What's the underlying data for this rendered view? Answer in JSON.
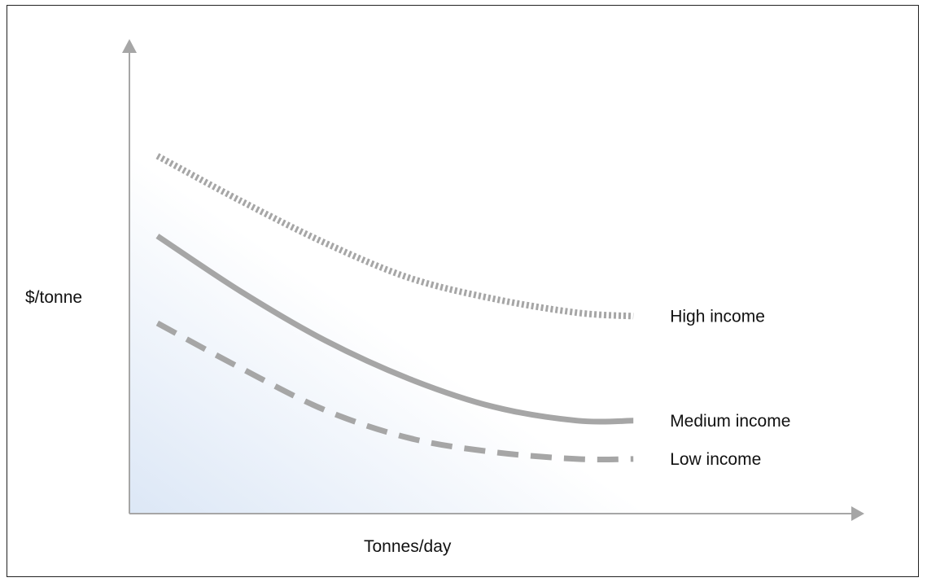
{
  "chart_data": {
    "type": "line",
    "title": "",
    "xlabel": "Tonnes/day",
    "ylabel": "$/tonne",
    "xlim": [
      0,
      100
    ],
    "ylim": [
      0,
      100
    ],
    "grid": false,
    "axis_ticks": false,
    "legend": "labels at right end of each line",
    "series": [
      {
        "name": "High income",
        "style": "dotted",
        "color": "#a6a6a6",
        "x": [
          5,
          20,
          35,
          50,
          65,
          80,
          90
        ],
        "y": [
          98,
          85,
          73,
          63,
          57,
          53,
          52
        ]
      },
      {
        "name": "Medium income",
        "style": "solid",
        "color": "#a6a6a6",
        "x": [
          5,
          20,
          35,
          50,
          65,
          80,
          90
        ],
        "y": [
          75,
          59,
          45,
          34,
          26,
          22,
          22
        ]
      },
      {
        "name": "Low income",
        "style": "dashed",
        "color": "#a6a6a6",
        "x": [
          5,
          20,
          35,
          50,
          65,
          80,
          90
        ],
        "y": [
          50,
          37,
          25,
          17,
          13,
          11,
          11
        ]
      }
    ]
  },
  "colors": {
    "axis": "#a6a6a6",
    "line": "#a6a6a6",
    "background_gradient": [
      "#dce7f6",
      "#ffffff"
    ],
    "text": "#111111",
    "frame": "#222222"
  }
}
